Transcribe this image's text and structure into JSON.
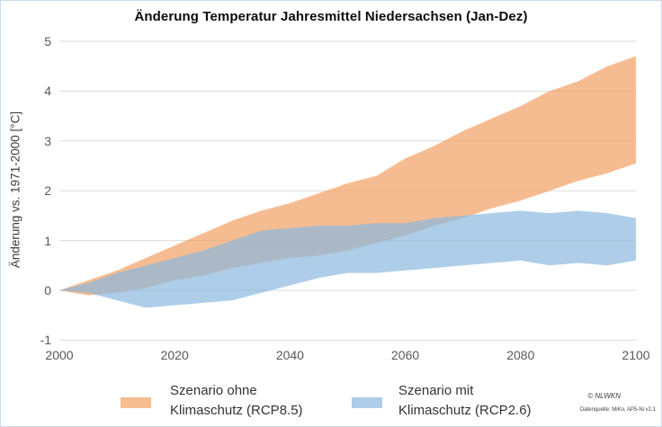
{
  "attribution": {
    "copyright": "© NLWKN",
    "source": "Datenquelle: MiKo, AP5-Ni v2.1"
  },
  "y_axis": {
    "ticks": [
      5,
      4,
      3,
      2,
      1,
      0,
      -1
    ]
  },
  "x_axis": {
    "ticks": [
      2000,
      2020,
      2040,
      2060,
      2080,
      2100
    ]
  },
  "legend": {
    "items": [
      {
        "line1": "Szenario ohne",
        "line2": "Klimaschutz (RCP8.5)",
        "color": "#F6BC92"
      },
      {
        "line1": "Szenario mit",
        "line2": "Klimaschutz (RCP2.6)",
        "color": "#AECDE8"
      }
    ]
  },
  "chart_data": {
    "type": "area",
    "title": "Änderung Temperatur Jahresmittel Niedersachsen (Jan-Dez)",
    "xlabel": "",
    "ylabel": "Änderung vs. 1971-2000 [°C]",
    "xlim": [
      2000,
      2100
    ],
    "ylim": [
      -1,
      5
    ],
    "grid": "horizontal",
    "gridline_color": "#DBDBDB",
    "legend_position": "bottom",
    "x": [
      2000,
      2005,
      2010,
      2015,
      2020,
      2025,
      2030,
      2035,
      2040,
      2045,
      2050,
      2055,
      2060,
      2065,
      2070,
      2075,
      2080,
      2085,
      2090,
      2095,
      2100
    ],
    "series": [
      {
        "id": "rcp85",
        "name": "Szenario ohne Klimaschutz (RCP8.5)",
        "band": true,
        "color": "#F29F63",
        "opacity": 0.7,
        "upper": [
          0.0,
          0.2,
          0.4,
          0.65,
          0.9,
          1.15,
          1.4,
          1.6,
          1.75,
          1.95,
          2.15,
          2.3,
          2.65,
          2.9,
          3.2,
          3.45,
          3.7,
          4.0,
          4.2,
          4.5,
          4.7
        ],
        "lower": [
          0.0,
          -0.1,
          -0.05,
          0.05,
          0.2,
          0.3,
          0.45,
          0.55,
          0.65,
          0.7,
          0.8,
          0.95,
          1.1,
          1.3,
          1.45,
          1.65,
          1.8,
          2.0,
          2.2,
          2.35,
          2.55
        ]
      },
      {
        "id": "rcp26",
        "name": "Szenario mit Klimaschutz (RCP2.6)",
        "band": true,
        "color": "#8BB8DE",
        "opacity": 0.7,
        "upper": [
          0.0,
          0.15,
          0.35,
          0.5,
          0.65,
          0.8,
          1.0,
          1.2,
          1.25,
          1.3,
          1.3,
          1.35,
          1.35,
          1.45,
          1.5,
          1.55,
          1.6,
          1.55,
          1.6,
          1.55,
          1.45
        ],
        "lower": [
          0.0,
          -0.05,
          -0.2,
          -0.35,
          -0.3,
          -0.25,
          -0.2,
          -0.05,
          0.1,
          0.25,
          0.35,
          0.35,
          0.4,
          0.45,
          0.5,
          0.55,
          0.6,
          0.5,
          0.55,
          0.5,
          0.6
        ]
      }
    ]
  }
}
